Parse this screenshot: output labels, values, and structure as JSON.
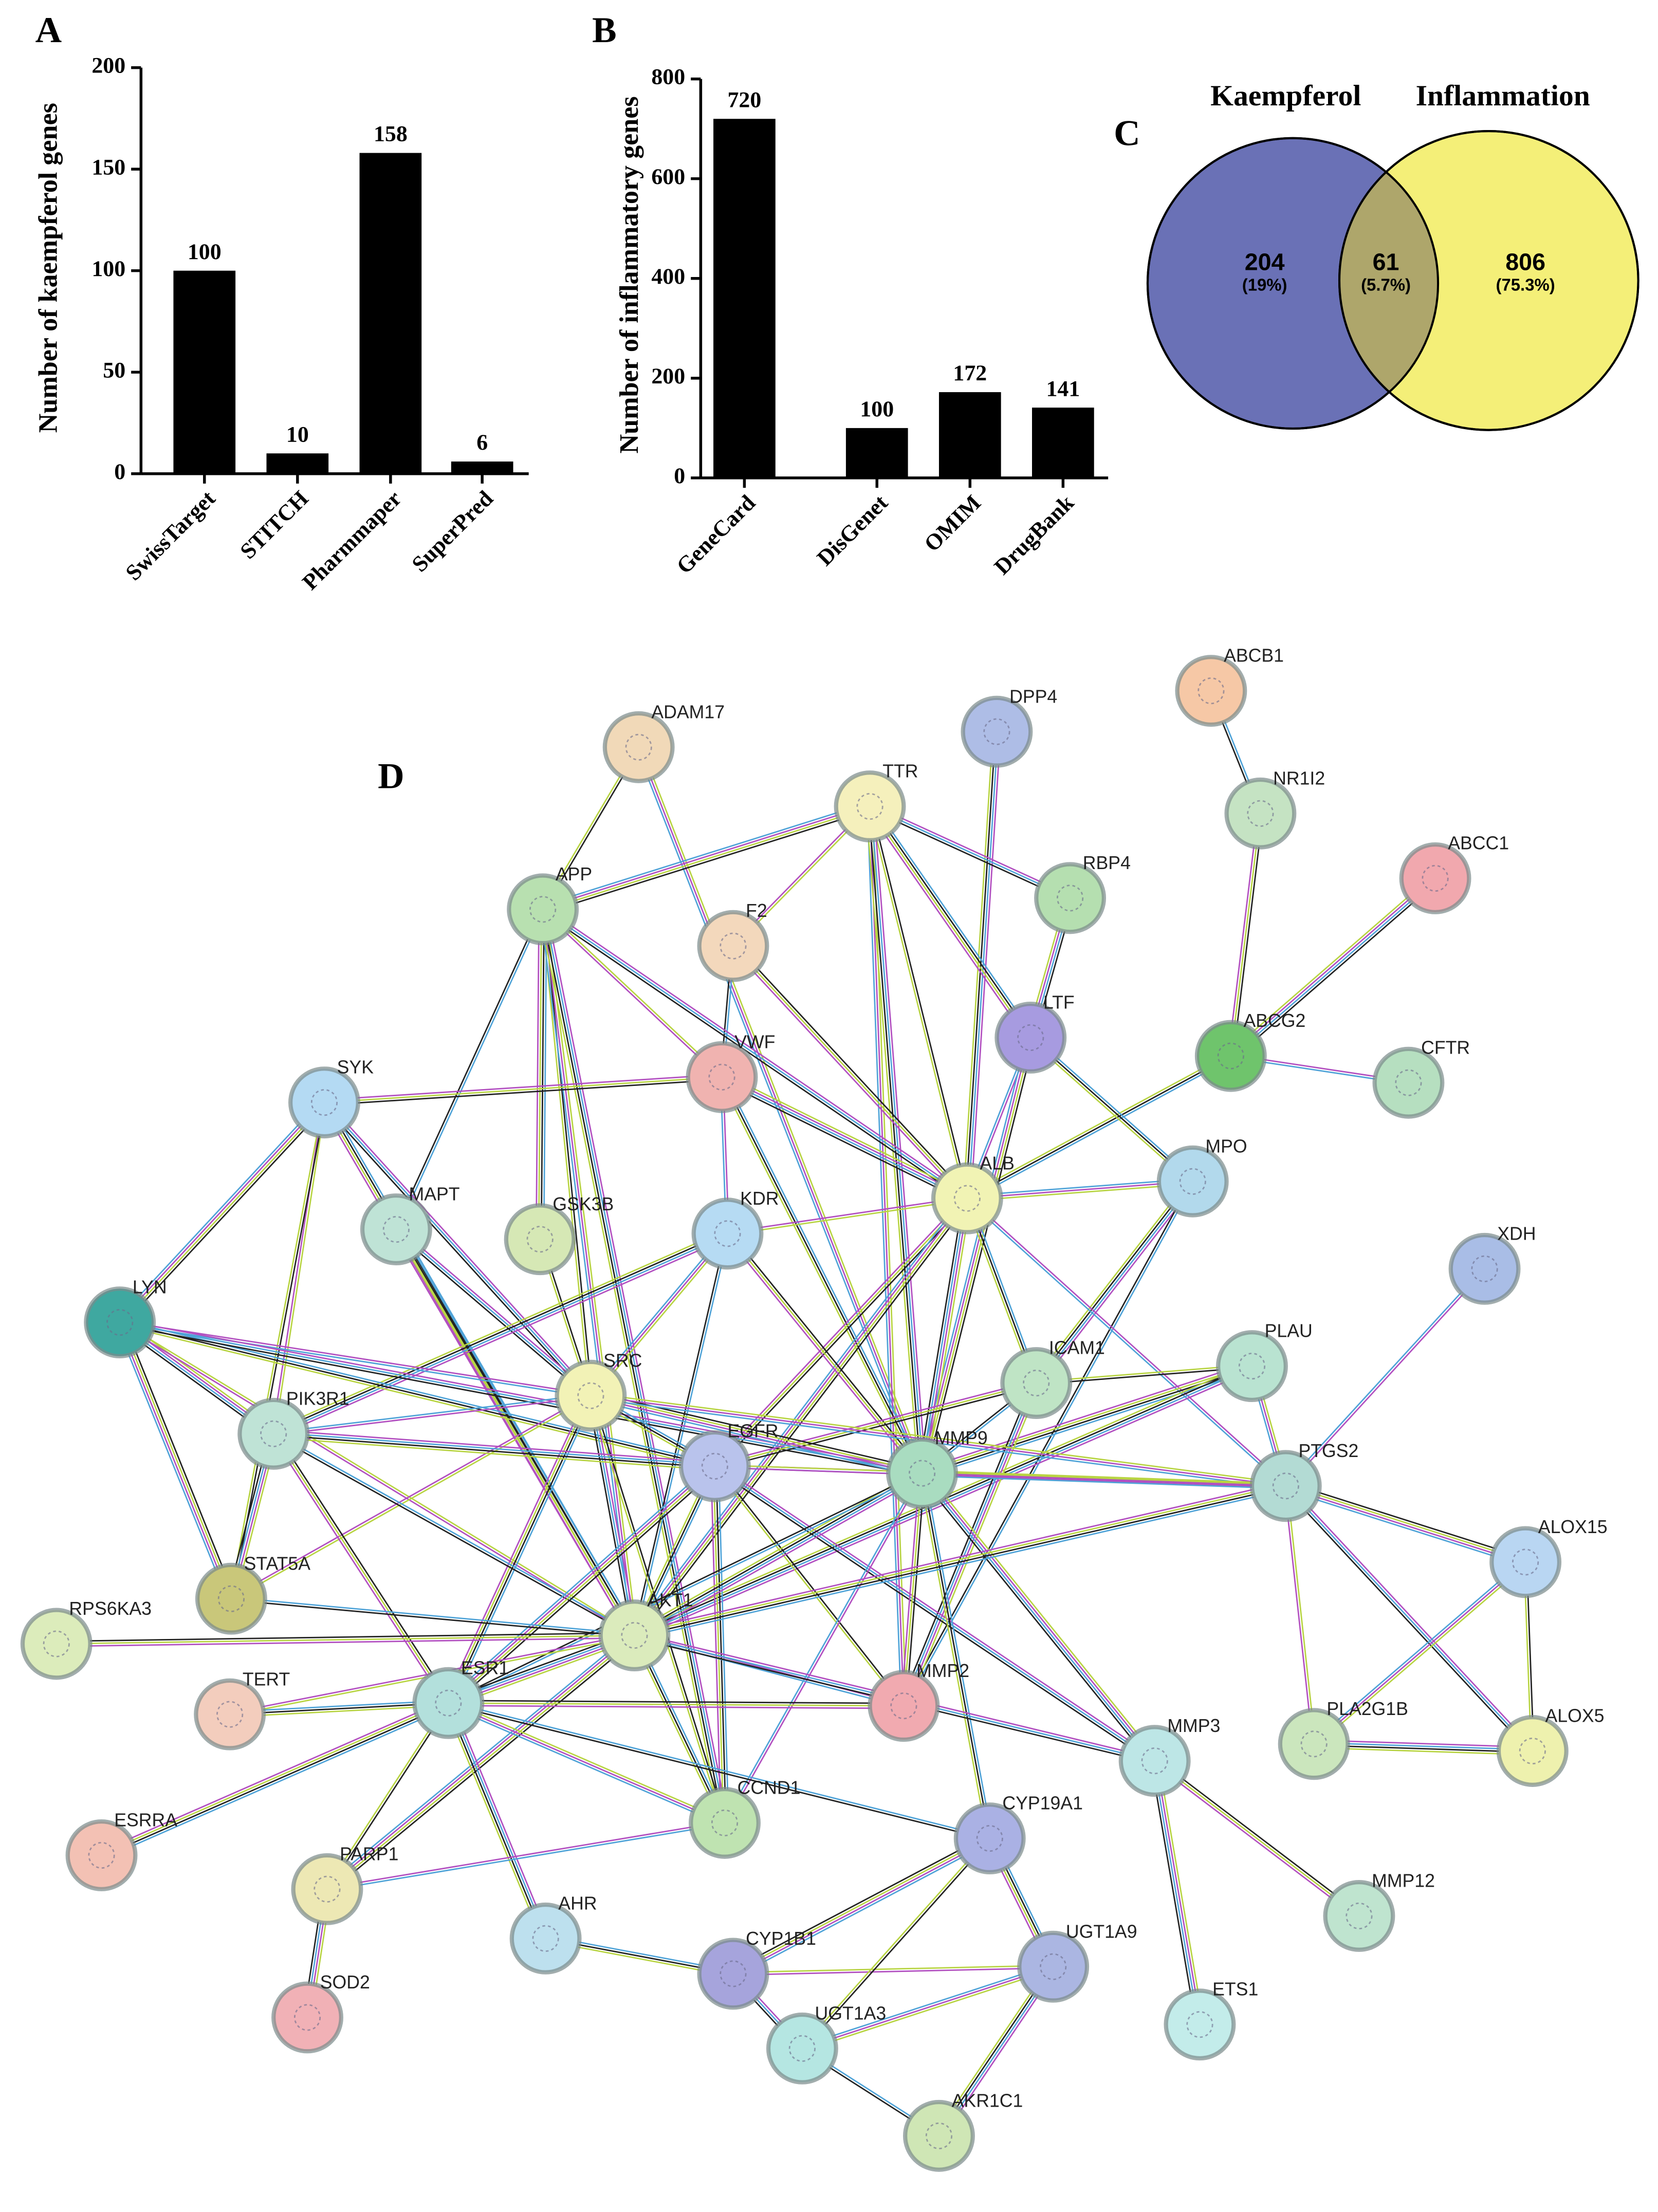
{
  "chart_data": [
    {
      "type": "bar",
      "panel_label": "A",
      "y_label": "Number of kaempferol genes",
      "categories": [
        "SwissTarget",
        "STITCH",
        "Pharmmaper",
        "SuperPred"
      ],
      "values": [
        100,
        10,
        158,
        6
      ],
      "color": "#000000",
      "ylim": [
        0,
        200
      ],
      "yticks": [
        0,
        50,
        100,
        150,
        200
      ],
      "grid": false
    },
    {
      "type": "bar",
      "panel_label": "B",
      "y_label": "Number of inflammatory genes",
      "categories": [
        "GeneCard",
        "DisGenet",
        "OMIM",
        "DrugBank"
      ],
      "values": [
        720,
        100,
        172,
        141
      ],
      "color": "#000000",
      "ylim": [
        0,
        800
      ],
      "yticks": [
        0,
        200,
        400,
        600,
        800
      ],
      "grid": false
    },
    {
      "type": "venn",
      "panel_label": "C",
      "sets": [
        "Kaempferol",
        "Inflammation"
      ],
      "values": [
        204,
        61,
        806
      ],
      "percent": [
        19,
        5.7,
        75.3
      ],
      "percent_labels": [
        "(19%)",
        "(5.7%)",
        "(75.3%)"
      ],
      "colors": [
        "#6a71b6",
        "#aea66b",
        "#f4ef78"
      ]
    },
    {
      "type": "network",
      "panel_label": "D",
      "nodes": [
        {
          "label": "ADAM17",
          "color": "#f1d9b8"
        },
        {
          "label": "DPP4",
          "color": "#aebde6"
        },
        {
          "label": "ABCB1",
          "color": "#f6c8a6"
        },
        {
          "label": "TTR",
          "color": "#f5f0bc"
        },
        {
          "label": "NR1I2",
          "color": "#c5e3c3"
        },
        {
          "label": "APP",
          "color": "#b8e0b0"
        },
        {
          "label": "RBP4",
          "color": "#b5dfb0"
        },
        {
          "label": "ABCC1",
          "color": "#f1a8ae"
        },
        {
          "label": "F2",
          "color": "#f3d8bc"
        },
        {
          "label": "LTF",
          "color": "#a79be0"
        },
        {
          "label": "ABCG2",
          "color": "#6fc46c"
        },
        {
          "label": "CFTR",
          "color": "#b6dfc0"
        },
        {
          "label": "VWF",
          "color": "#f0b3b0"
        },
        {
          "label": "SYK",
          "color": "#b4daf3"
        },
        {
          "label": "MPO",
          "color": "#b2d9ec"
        },
        {
          "label": "ALB",
          "color": "#f1f3b4"
        },
        {
          "label": "MAPT",
          "color": "#bfe3d6"
        },
        {
          "label": "GSK3B",
          "color": "#d6e8b5"
        },
        {
          "label": "KDR",
          "color": "#b6dbf3"
        },
        {
          "label": "XDH",
          "color": "#a9bde6"
        },
        {
          "label": "LYN",
          "color": "#3fa8a0"
        },
        {
          "label": "PLAU",
          "color": "#b9e3d1"
        },
        {
          "label": "ICAM1",
          "color": "#bfe4c5"
        },
        {
          "label": "SRC",
          "color": "#f2f2b6"
        },
        {
          "label": "PIK3R1",
          "color": "#bfe3d6"
        },
        {
          "label": "EGFR",
          "color": "#b9c3ec"
        },
        {
          "label": "MMP9",
          "color": "#a9dcc0"
        },
        {
          "label": "PTGS2",
          "color": "#b3dbd4"
        },
        {
          "label": "ALOX15",
          "color": "#b9d6f2"
        },
        {
          "label": "STAT5A",
          "color": "#c9c77a"
        },
        {
          "label": "RPS6KA3",
          "color": "#dcecbb"
        },
        {
          "label": "AKT1",
          "color": "#dbebbc"
        },
        {
          "label": "TERT",
          "color": "#f3cdbd"
        },
        {
          "label": "ESR1",
          "color": "#b3e0dc"
        },
        {
          "label": "MMP2",
          "color": "#f1aab0"
        },
        {
          "label": "MMP3",
          "color": "#bde6e6"
        },
        {
          "label": "PLA2G1B",
          "color": "#cbe6bd"
        },
        {
          "label": "ALOX5",
          "color": "#eef1ae"
        },
        {
          "label": "ESRRA",
          "color": "#f3c1b4"
        },
        {
          "label": "CCND1",
          "color": "#bfe3b1"
        },
        {
          "label": "CYP19A1",
          "color": "#aab1e4"
        },
        {
          "label": "PARP1",
          "color": "#ede8b4"
        },
        {
          "label": "MMP12",
          "color": "#bfe4cf"
        },
        {
          "label": "AHR",
          "color": "#bde0ee"
        },
        {
          "label": "CYP1B1",
          "color": "#a6a4dc"
        },
        {
          "label": "UGT1A9",
          "color": "#abb6e2"
        },
        {
          "label": "SOD2",
          "color": "#f1b1b6"
        },
        {
          "label": "UGT1A3",
          "color": "#b5e6e2"
        },
        {
          "label": "ETS1",
          "color": "#c3ecea"
        },
        {
          "label": "AKR1C1",
          "color": "#cfe6b5"
        }
      ]
    }
  ]
}
